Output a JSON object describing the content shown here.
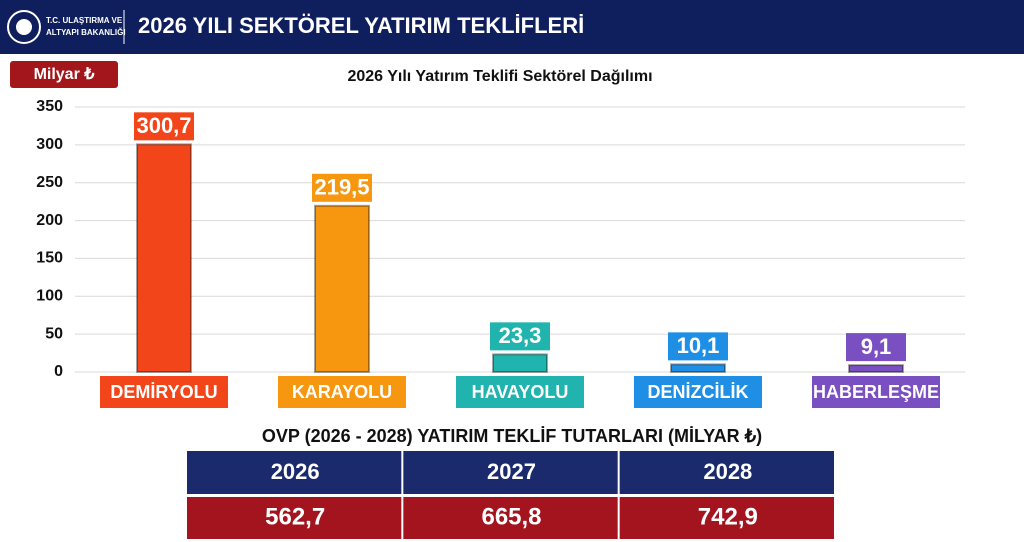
{
  "header": {
    "logo_lines": [
      "T.C. ULAŞTIRMA VE",
      "ALTYAPI BAKANLIĞI"
    ],
    "title": "2026 YILI SEKTÖREL YATIRIM TEKLİFLERİ"
  },
  "chart_data": {
    "type": "bar",
    "unit": "Milyar ₺",
    "title": "2026 Yılı Yatırım Teklifi Sektörel Dağılımı",
    "categories": [
      "DEMİRYOLU",
      "KARAYOLU",
      "HAVAYOLU",
      "DENİZCİLİK",
      "HABERLEŞME"
    ],
    "values": [
      300.7,
      219.5,
      23.3,
      10.1,
      9.1
    ],
    "value_labels": [
      "300,7",
      "219,5",
      "23,3",
      "10,1",
      "9,1"
    ],
    "colors": [
      "#f2461a",
      "#f7960f",
      "#21b3ad",
      "#1f8fe6",
      "#7a4fc2"
    ],
    "ylim": [
      0,
      350
    ],
    "yticks": [
      0,
      50,
      100,
      150,
      200,
      250,
      300,
      350
    ],
    "grid": true
  },
  "table": {
    "title": "OVP (2026 - 2028) YATIRIM TEKLİF TUTARLARI (MİLYAR ₺)",
    "headers": [
      "2026",
      "2027",
      "2028"
    ],
    "rows": [
      [
        "562,7",
        "665,8",
        "742,9"
      ]
    ]
  }
}
